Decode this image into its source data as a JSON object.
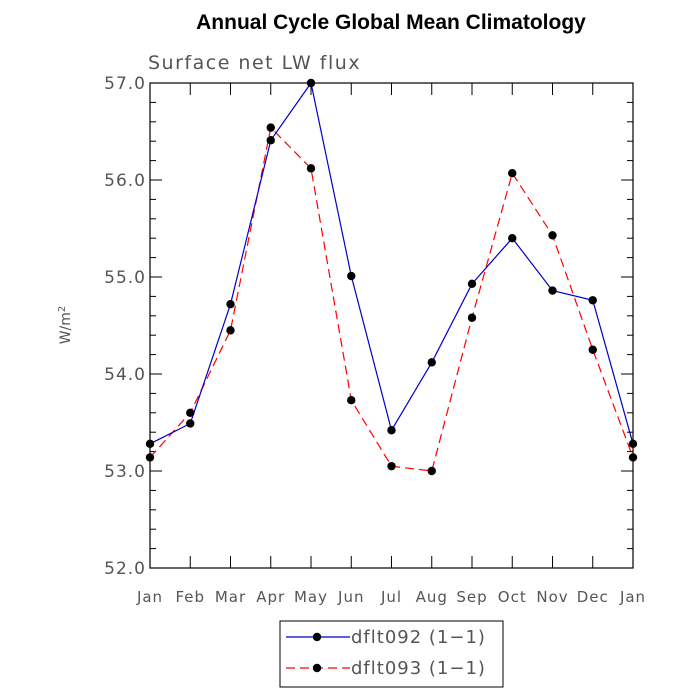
{
  "chart_data": {
    "type": "line",
    "title": "Annual Cycle Global Mean Climatology",
    "subtitle": "Surface net LW flux",
    "ylabel": "W/m",
    "ylabel_sup": "2",
    "xlabel": "",
    "categories": [
      "Jan",
      "Feb",
      "Mar",
      "Apr",
      "May",
      "Jun",
      "Jul",
      "Aug",
      "Sep",
      "Oct",
      "Nov",
      "Dec",
      "Jan"
    ],
    "ylim": [
      52.0,
      57.0
    ],
    "yticks": [
      "52.0",
      "53.0",
      "54.0",
      "55.0",
      "56.0",
      "57.0"
    ],
    "series": [
      {
        "name": "dflt092 (1−1)",
        "color": "#0000cc",
        "dash": "solid",
        "values": [
          53.28,
          53.49,
          54.72,
          56.41,
          57.0,
          55.01,
          53.42,
          54.12,
          54.93,
          55.4,
          54.86,
          54.76,
          53.28
        ]
      },
      {
        "name": "dflt093 (1−1)",
        "color": "#ff0000",
        "dash": "dashed",
        "values": [
          53.14,
          53.6,
          54.45,
          56.54,
          56.12,
          53.73,
          53.05,
          53.0,
          54.58,
          56.07,
          55.43,
          54.25,
          53.14
        ]
      }
    ],
    "legend_position": "bottom-center"
  }
}
